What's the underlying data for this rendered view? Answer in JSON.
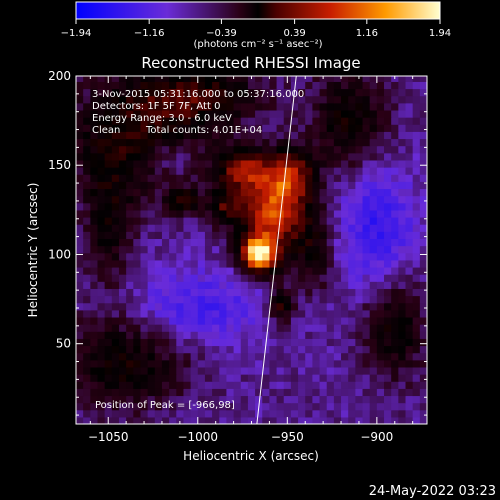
{
  "chart_data": {
    "type": "heatmap",
    "title": "Reconstructed RHESSI Image",
    "xlabel": "Heliocentric X (arcsec)",
    "ylabel": "Heliocentric Y (arcsec)",
    "xlim": [
      -1068,
      -872
    ],
    "ylim": [
      5,
      200
    ],
    "x_ticks": [
      -1050,
      -1000,
      -950,
      -900
    ],
    "y_ticks": [
      50,
      100,
      150,
      200
    ],
    "colorbar": {
      "min": -1.94,
      "max": 1.94,
      "tick_values": [
        -1.94,
        -1.16,
        -0.39,
        0.39,
        1.16,
        1.94
      ],
      "tick_labels": [
        "-1.94",
        "-1.16",
        "-0.39",
        "0.39",
        "1.16",
        "1.94"
      ],
      "units_label": "(photons cm⁻² s⁻¹ asec⁻²)"
    },
    "annotations": {
      "time": "3-Nov-2015 05:31:16.000 to 05:37:16.000",
      "detectors": "Detectors: 1F 5F 7F, Att 0",
      "energy": "Energy Range: 3.0 - 6.0 keV",
      "method": "Clean",
      "counts": "Total counts: 4.01E+04",
      "peak": "Position of Peak = [-966,98]"
    },
    "limb_line": [
      [
        -967,
        5
      ],
      [
        -945,
        200
      ]
    ],
    "blobs": [
      {
        "x": -966,
        "y": 100,
        "amp": 2.6,
        "sx": 7,
        "sy": 7
      },
      {
        "x": -958,
        "y": 125,
        "amp": 1.8,
        "sx": 14,
        "sy": 16
      },
      {
        "x": -975,
        "y": 148,
        "amp": 1.2,
        "sx": 10,
        "sy": 8
      },
      {
        "x": -948,
        "y": 146,
        "amp": 1.1,
        "sx": 9,
        "sy": 10
      },
      {
        "x": -1008,
        "y": 130,
        "amp": 0.9,
        "sx": 7,
        "sy": 5
      },
      {
        "x": -985,
        "y": 127,
        "amp": 0.8,
        "sx": 6,
        "sy": 6
      },
      {
        "x": -953,
        "y": 72,
        "amp": 1.0,
        "sx": 5,
        "sy": 7
      },
      {
        "x": -1030,
        "y": 168,
        "amp": 0.9,
        "sx": 30,
        "sy": 22
      },
      {
        "x": -1050,
        "y": 120,
        "amp": 0.7,
        "sx": 10,
        "sy": 25
      },
      {
        "x": -1000,
        "y": 190,
        "amp": 0.8,
        "sx": 25,
        "sy": 10
      },
      {
        "x": -915,
        "y": 175,
        "amp": 0.8,
        "sx": 15,
        "sy": 20
      },
      {
        "x": -935,
        "y": 100,
        "amp": 0.6,
        "sx": 8,
        "sy": 15
      },
      {
        "x": -1040,
        "y": 40,
        "amp": 0.8,
        "sx": 25,
        "sy": 18
      },
      {
        "x": -890,
        "y": 60,
        "amp": 0.8,
        "sx": 12,
        "sy": 20
      },
      {
        "x": -1000,
        "y": 70,
        "amp": -0.6,
        "sx": 25,
        "sy": 15
      },
      {
        "x": -900,
        "y": 115,
        "amp": -0.7,
        "sx": 15,
        "sy": 25
      },
      {
        "x": -1015,
        "y": 155,
        "amp": -0.5,
        "sx": 10,
        "sy": 8
      }
    ],
    "background": -0.75
  },
  "footer": {
    "timestamp": "24-May-2022 03:23"
  }
}
